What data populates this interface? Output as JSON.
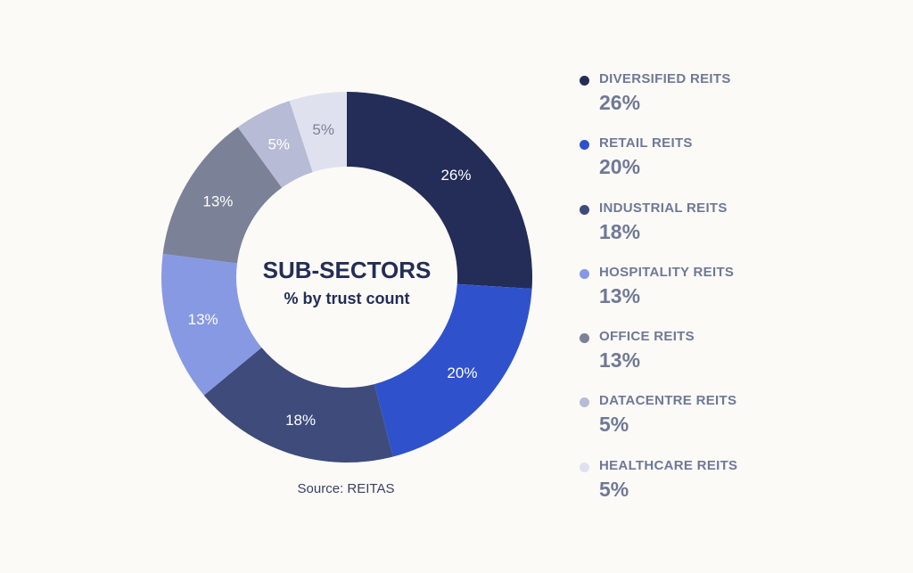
{
  "chart_data": {
    "type": "pie",
    "title": "SUB-SECTORS",
    "subtitle": "% by trust count",
    "source": "Source: REITAS",
    "slices": [
      {
        "name": "DIVERSIFIED REITS",
        "value": 26,
        "label": "26%",
        "legend_value": "26%",
        "color": "#232d57",
        "text_color": "#ffffff"
      },
      {
        "name": "RETAIL REITS",
        "value": 20,
        "label": "20%",
        "legend_value": "20%",
        "color": "#2f52cc",
        "text_color": "#ffffff"
      },
      {
        "name": "INDUSTRIAL REITS",
        "value": 18,
        "label": "18%",
        "legend_value": "18%",
        "color": "#3e4b7b",
        "text_color": "#ffffff"
      },
      {
        "name": "HOSPITALITY REITS",
        "value": 13,
        "label": "13%",
        "legend_value": "13%",
        "color": "#8799e2",
        "text_color": "#ffffff"
      },
      {
        "name": "OFFICE REITS",
        "value": 13,
        "label": "13%",
        "legend_value": "13%",
        "color": "#7b8196",
        "text_color": "#ffffff"
      },
      {
        "name": "DATACENTRE REITS",
        "value": 5,
        "label": "5%",
        "legend_value": "5%",
        "color": "#b8bbd6",
        "text_color": "#ffffff"
      },
      {
        "name": "HEALTHCARE REITS",
        "value": 5,
        "label": "5%",
        "legend_value": "5%",
        "color": "#e0e1ee",
        "text_color": "#7b8196"
      }
    ],
    "legend_placement": "right"
  }
}
